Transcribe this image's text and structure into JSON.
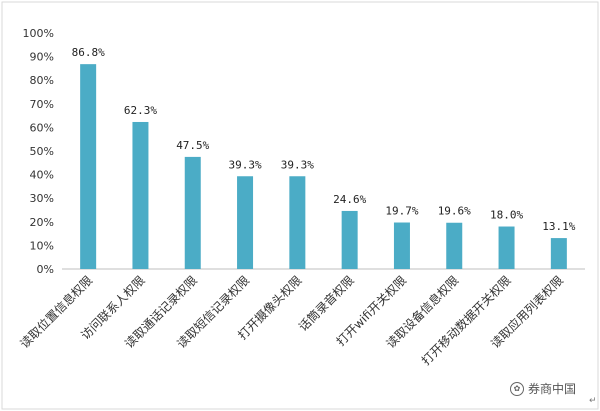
{
  "chart_data": {
    "type": "bar",
    "categories": [
      "读取位置信息权限",
      "访问联系人权限",
      "读取通话记录权限",
      "读取短信记录权限",
      "打开摄像头权限",
      "话筒录音权限",
      "打开wifi开关权限",
      "读取设备信息权限",
      "打开移动数据开关权限",
      "读取应用列表权限"
    ],
    "values": [
      86.8,
      62.3,
      47.5,
      39.3,
      39.3,
      24.6,
      19.7,
      19.6,
      18.0,
      13.1
    ],
    "data_labels": [
      "86.8%",
      "62.3%",
      "47.5%",
      "39.3%",
      "39.3%",
      "24.6%",
      "19.7%",
      "19.6%",
      "18.0%",
      "13.1%"
    ],
    "ylim": [
      0,
      100
    ],
    "yticks": [
      "0%",
      "10%",
      "20%",
      "30%",
      "40%",
      "50%",
      "60%",
      "70%",
      "80%",
      "90%",
      "100%"
    ],
    "grid": false,
    "bar_color": "#4bacc6"
  },
  "watermark": {
    "icon": "wechat-icon",
    "text": "券商中国"
  },
  "corner_mark": "↵"
}
